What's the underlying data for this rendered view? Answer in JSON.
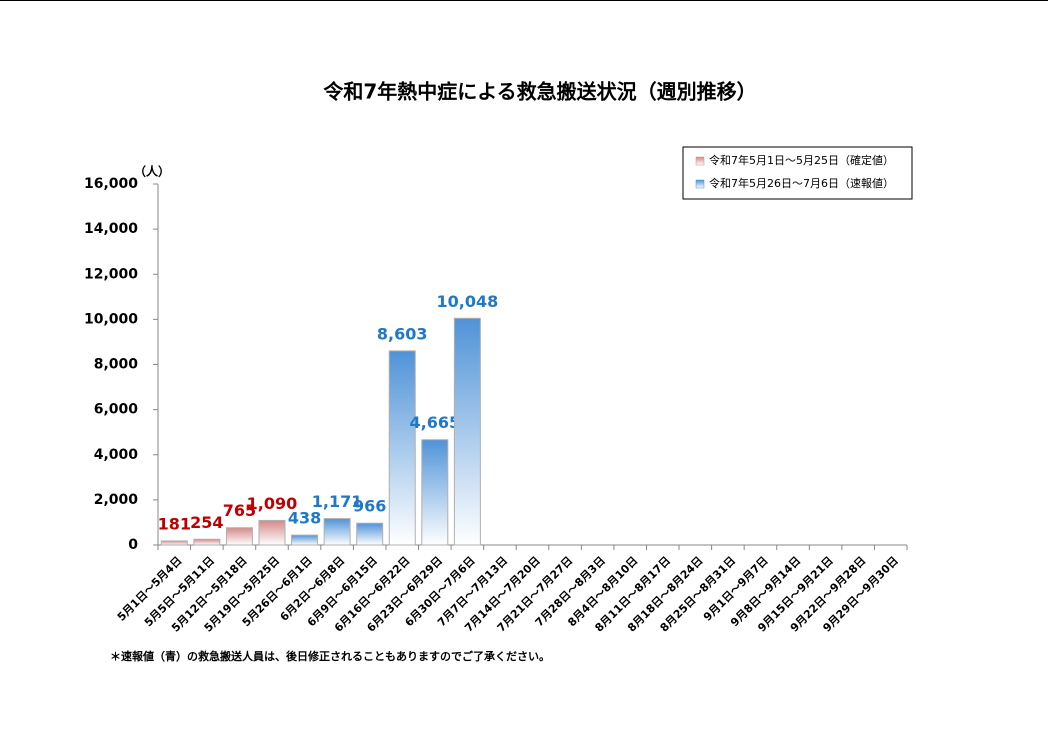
{
  "chart_data": {
    "type": "bar",
    "title": "令和7年熱中症による救急搬送状況（週別推移）",
    "y_unit_label": "（人）",
    "footnote": "＊速報値（青）の救急搬送人員は、後日修正されることもありますのでご了承ください。",
    "categories": [
      "5月1日～5月4日",
      "5月5日～5月11日",
      "5月12日～5月18日",
      "5月19日～5月25日",
      "5月26日～6月1日",
      "6月2日～6月8日",
      "6月9日～6月15日",
      "6月16日～6月22日",
      "6月23日～6月29日",
      "6月30日～7月6日",
      "7月7日～7月13日",
      "7月14日～7月20日",
      "7月21日～7月27日",
      "7月28日～8月3日",
      "8月4日～8月10日",
      "8月11日～8月17日",
      "8月18日～8月24日",
      "8月25日～8月31日",
      "9月1日～9月7日",
      "9月8日～9月14日",
      "9月15日～9月21日",
      "9月22日～9月28日",
      "9月29日～9月30日"
    ],
    "series": [
      {
        "name": "令和7年5月1日～5月25日（確定値）",
        "color": "#d48a88",
        "label_color": "#c00000",
        "values": [
          181,
          254,
          765,
          1090,
          null,
          null,
          null,
          null,
          null,
          null,
          null,
          null,
          null,
          null,
          null,
          null,
          null,
          null,
          null,
          null,
          null,
          null,
          null
        ],
        "value_labels": [
          "181",
          "254",
          "765",
          "1,090",
          null,
          null,
          null,
          null,
          null,
          null,
          null,
          null,
          null,
          null,
          null,
          null,
          null,
          null,
          null,
          null,
          null,
          null,
          null
        ]
      },
      {
        "name": "令和7年5月26日～7月6日（速報値）",
        "color": "#4f93d8",
        "label_color": "#1f78c8",
        "values": [
          null,
          null,
          null,
          null,
          438,
          1171,
          966,
          8603,
          4665,
          10048,
          null,
          null,
          null,
          null,
          null,
          null,
          null,
          null,
          null,
          null,
          null,
          null,
          null
        ],
        "value_labels": [
          null,
          null,
          null,
          null,
          "438",
          "1,171",
          "966",
          "8,603",
          "4,665",
          "10,048",
          null,
          null,
          null,
          null,
          null,
          null,
          null,
          null,
          null,
          null,
          null,
          null,
          null
        ]
      }
    ],
    "ylim": [
      0,
      16000
    ],
    "yticks": [
      0,
      {
        "value": 2000,
        "label": "2,000"
      },
      {
        "value": 4000,
        "label": "4,000"
      },
      {
        "value": 6000,
        "label": "6,000"
      },
      {
        "value": 8000,
        "label": "8,000"
      },
      {
        "value": 10000,
        "label": "10,000"
      },
      {
        "value": 12000,
        "label": "12,000"
      },
      {
        "value": 14000,
        "label": "14,000"
      },
      {
        "value": 16000,
        "label": "16,000"
      }
    ],
    "legend": "top-right"
  }
}
